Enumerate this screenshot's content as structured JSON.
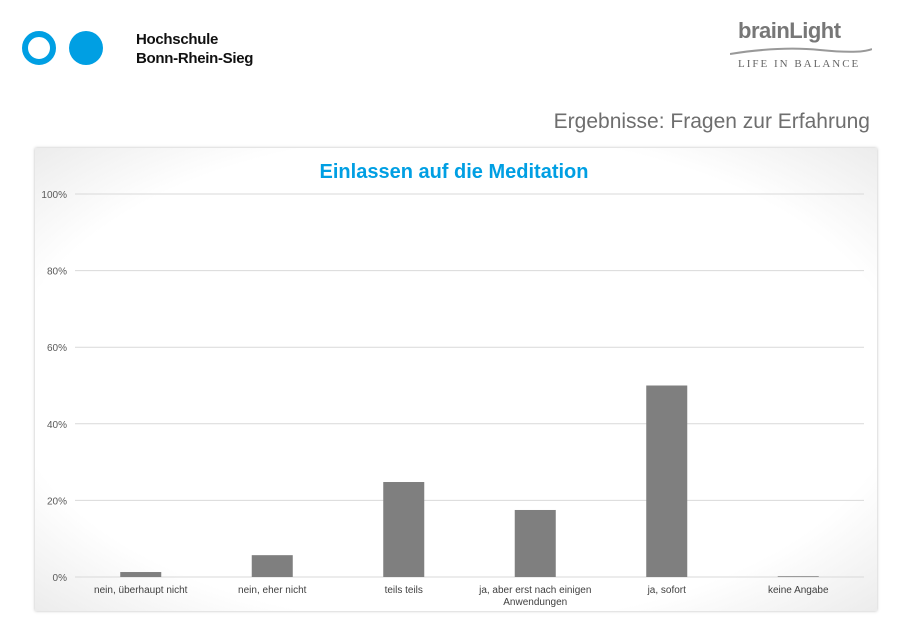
{
  "header": {
    "institution_line1": "Hochschule",
    "institution_line2": "Bonn-Rhein-Sieg",
    "partner_logo": "brainLight",
    "partner_tagline": "LIFE IN BALANCE",
    "slide_title": "Ergebnisse: Fragen zur Erfahrung"
  },
  "colors": {
    "accent": "#009fe3",
    "bar": "#7f7f7f",
    "grid": "#d9d9d9"
  },
  "chart_data": {
    "type": "bar",
    "title": "Einlassen auf die Meditation",
    "categories": [
      "nein, überhaupt nicht",
      "nein, eher nicht",
      "teils teils",
      "ja, aber erst nach einigen Anwendungen",
      "ja, sofort",
      "keine Angabe"
    ],
    "category_lines": [
      [
        "nein, überhaupt nicht"
      ],
      [
        "nein, eher nicht"
      ],
      [
        "teils teils"
      ],
      [
        "ja, aber erst nach einigen",
        "Anwendungen"
      ],
      [
        "ja, sofort"
      ],
      [
        "keine Angabe"
      ]
    ],
    "values": [
      1.3,
      5.7,
      24.8,
      17.5,
      50.0,
      0.2
    ],
    "ylim": [
      0,
      100
    ],
    "yticks": [
      0,
      20,
      40,
      60,
      80,
      100
    ],
    "ytick_labels": [
      "0%",
      "20%",
      "40%",
      "60%",
      "80%",
      "100%"
    ],
    "grid": true,
    "legend": "none"
  }
}
